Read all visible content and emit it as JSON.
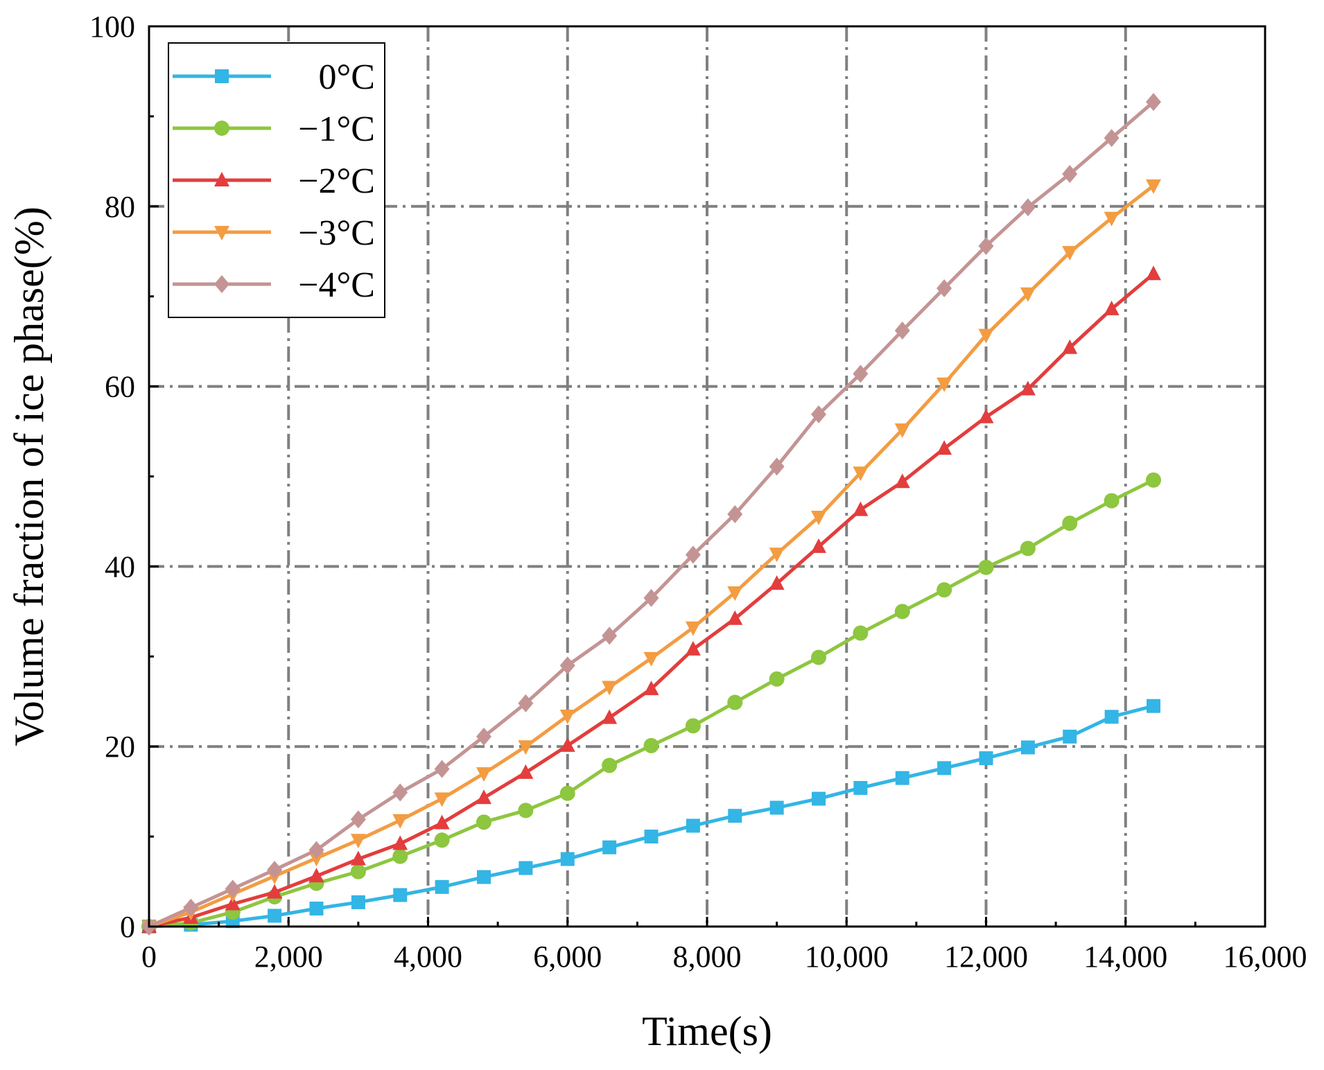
{
  "chart_data": {
    "type": "line",
    "title": "",
    "xlabel": "Time(s)",
    "ylabel": "Volume fraction of ice phase(%)",
    "xlim": [
      0,
      16000
    ],
    "ylim": [
      0,
      100
    ],
    "xticks": [
      0,
      2000,
      4000,
      6000,
      8000,
      10000,
      12000,
      14000,
      16000
    ],
    "xtick_labels": [
      "0",
      "2,000",
      "4,000",
      "6,000",
      "8,000",
      "10,000",
      "12,000",
      "14,000",
      "16,000"
    ],
    "yticks": [
      0,
      20,
      40,
      60,
      80,
      100
    ],
    "ytick_labels": [
      "0",
      "20",
      "40",
      "60",
      "80",
      "100"
    ],
    "grid": true,
    "legend_position": "top-left",
    "x": [
      0,
      600,
      1200,
      1800,
      2400,
      3000,
      3600,
      4200,
      4800,
      5400,
      6000,
      6600,
      7200,
      7800,
      8400,
      9000,
      9600,
      10200,
      10800,
      11400,
      12000,
      12600,
      13200,
      13800,
      14400
    ],
    "series": [
      {
        "name": "0°C",
        "color": "#33b5e5",
        "marker": "square",
        "values": [
          0,
          0.2,
          0.6,
          1.2,
          2.0,
          2.7,
          3.5,
          4.4,
          5.5,
          6.5,
          7.5,
          8.8,
          10.0,
          11.2,
          12.3,
          13.2,
          14.2,
          15.4,
          16.5,
          17.6,
          18.7,
          19.9,
          21.1,
          23.3,
          24.5
        ]
      },
      {
        "name": "−1°C",
        "color": "#8dc63f",
        "marker": "circle",
        "values": [
          0,
          0.4,
          1.6,
          3.3,
          4.8,
          6.1,
          7.8,
          9.6,
          11.6,
          12.9,
          14.8,
          17.9,
          20.1,
          22.3,
          24.9,
          27.5,
          29.9,
          32.6,
          35.0,
          37.4,
          39.9,
          42.0,
          44.8,
          47.3,
          49.6
        ]
      },
      {
        "name": "−2°C",
        "color": "#e33d3d",
        "marker": "triangle-up",
        "values": [
          0,
          1.0,
          2.5,
          3.8,
          5.6,
          7.5,
          9.2,
          11.5,
          14.3,
          17.1,
          20.1,
          23.2,
          26.4,
          30.8,
          34.2,
          38.1,
          42.2,
          46.3,
          49.4,
          53.1,
          56.6,
          59.7,
          64.3,
          68.6,
          72.5
        ]
      },
      {
        "name": "−3°C",
        "color": "#f39c42",
        "marker": "triangle-down",
        "values": [
          0,
          1.6,
          3.6,
          5.6,
          7.6,
          9.6,
          11.8,
          14.2,
          17.0,
          20.0,
          23.4,
          26.6,
          29.8,
          33.2,
          37.1,
          41.4,
          45.5,
          50.4,
          55.2,
          60.3,
          65.7,
          70.3,
          74.9,
          78.7,
          82.3
        ]
      },
      {
        "name": "−4°C",
        "color": "#c49494",
        "marker": "diamond",
        "values": [
          0,
          2.1,
          4.2,
          6.3,
          8.5,
          11.9,
          14.9,
          17.5,
          21.1,
          24.8,
          29.0,
          32.3,
          36.5,
          41.3,
          45.8,
          51.1,
          56.9,
          61.4,
          66.2,
          70.9,
          75.6,
          79.9,
          83.6,
          87.6,
          91.6
        ]
      }
    ]
  }
}
